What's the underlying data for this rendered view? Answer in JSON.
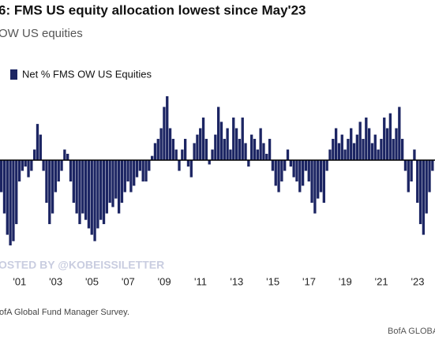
{
  "chart_data": {
    "type": "bar",
    "title": "6: FMS US equity allocation lowest since May'23",
    "subtitle": "OW US equities",
    "legend": "Net % FMS OW US Equities",
    "watermark": "OSTED BY @KOBEISSILETTER",
    "source": "ofA Global Fund Manager Survey.",
    "brand": "BofA GLOBA",
    "color": "#1c2563",
    "ylim": [
      -47,
      40
    ],
    "categories": [
      null,
      null,
      null,
      null,
      null,
      null,
      "'01",
      null,
      null,
      null,
      null,
      null,
      null,
      null,
      null,
      null,
      null,
      null,
      "'03",
      null,
      null,
      null,
      null,
      null,
      null,
      null,
      null,
      null,
      null,
      null,
      "'05",
      null,
      null,
      null,
      null,
      null,
      null,
      null,
      null,
      null,
      null,
      null,
      "'07",
      null,
      null,
      null,
      null,
      null,
      null,
      null,
      null,
      null,
      null,
      null,
      "'09",
      null,
      null,
      null,
      null,
      null,
      null,
      null,
      null,
      null,
      null,
      null,
      "'11",
      null,
      null,
      null,
      null,
      null,
      null,
      null,
      null,
      null,
      null,
      null,
      "'13",
      null,
      null,
      null,
      null,
      null,
      null,
      null,
      null,
      null,
      null,
      null,
      "'15",
      null,
      null,
      null,
      null,
      null,
      null,
      null,
      null,
      null,
      null,
      null,
      "'17",
      null,
      null,
      null,
      null,
      null,
      null,
      null,
      null,
      null,
      null,
      null,
      "'19",
      null,
      null,
      null,
      null,
      null,
      null,
      null,
      null,
      null,
      null,
      null,
      "'21",
      null,
      null,
      null,
      null,
      null,
      null,
      null,
      null,
      null,
      null,
      null,
      "'23",
      null,
      null,
      null,
      null,
      null
    ],
    "values": [
      -15,
      -25,
      -35,
      -40,
      -38,
      -30,
      -10,
      -5,
      -3,
      -8,
      -5,
      5,
      17,
      12,
      -5,
      -20,
      -30,
      -25,
      -15,
      -10,
      -5,
      5,
      3,
      -10,
      -20,
      -25,
      -30,
      -25,
      -28,
      -32,
      -35,
      -38,
      -32,
      -28,
      -30,
      -25,
      -20,
      -22,
      -18,
      -25,
      -20,
      -15,
      -10,
      -15,
      -12,
      -8,
      -5,
      -10,
      -10,
      -5,
      2,
      8,
      10,
      15,
      25,
      30,
      15,
      10,
      5,
      -5,
      5,
      10,
      -3,
      -8,
      8,
      12,
      15,
      20,
      10,
      -2,
      5,
      12,
      25,
      18,
      10,
      15,
      5,
      20,
      15,
      10,
      20,
      8,
      -3,
      12,
      10,
      5,
      15,
      8,
      3,
      10,
      -5,
      -12,
      -15,
      -10,
      -5,
      5,
      -3,
      -8,
      -10,
      -15,
      -12,
      -5,
      -10,
      -20,
      -25,
      -18,
      -15,
      -20,
      -5,
      5,
      10,
      15,
      8,
      12,
      5,
      10,
      15,
      8,
      12,
      18,
      10,
      20,
      15,
      8,
      12,
      5,
      10,
      20,
      15,
      22,
      10,
      15,
      25,
      10,
      -5,
      -15,
      -10,
      5,
      -20,
      -30,
      -35,
      -25,
      -15,
      -5
    ]
  }
}
